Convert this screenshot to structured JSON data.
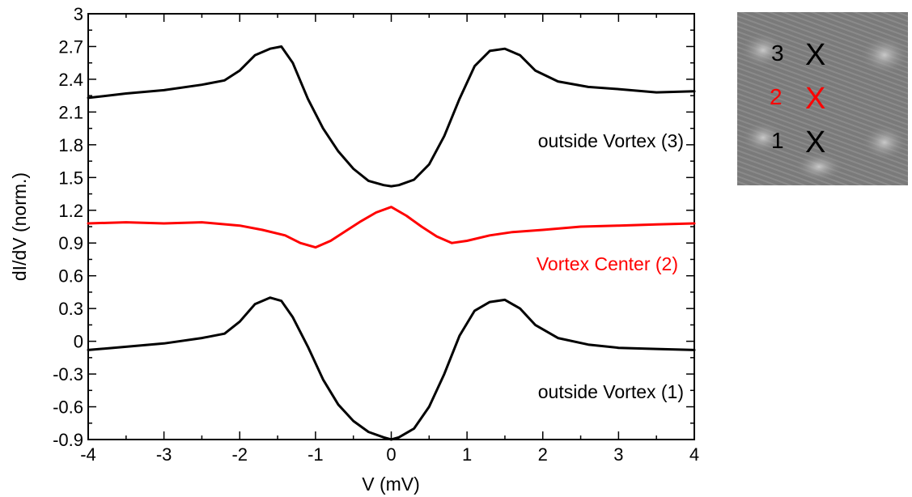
{
  "chart_data": {
    "type": "line",
    "title": "",
    "xlabel": "V (mV)",
    "ylabel": "dI/dV (norm.)",
    "xlim": [
      -4,
      4
    ],
    "ylim": [
      -0.9,
      3
    ],
    "xticks": [
      -4,
      -3,
      -2,
      -1,
      0,
      1,
      2,
      3,
      4
    ],
    "yticks": [
      -0.9,
      -0.6,
      -0.3,
      0,
      0.3,
      0.6,
      0.9,
      1.2,
      1.5,
      1.8,
      2.1,
      2.4,
      2.7,
      3
    ],
    "xtick_labels": [
      "-4",
      "-3",
      "-2",
      "-1",
      "0",
      "1",
      "2",
      "3",
      "4"
    ],
    "ytick_labels": [
      "-0.9",
      "-0.6",
      "-0.3",
      "0",
      "0.3",
      "0.6",
      "0.9",
      "1.2",
      "1.5",
      "1.8",
      "2.1",
      "2.4",
      "2.7",
      "3"
    ],
    "grid": false,
    "series": [
      {
        "color": "#000000",
        "x": [
          -4.0,
          -3.5,
          -3.0,
          -2.5,
          -2.2,
          -2.0,
          -1.8,
          -1.6,
          -1.45,
          -1.3,
          -1.1,
          -0.9,
          -0.7,
          -0.5,
          -0.3,
          -0.1,
          0.0,
          0.1,
          0.3,
          0.5,
          0.7,
          0.9,
          1.1,
          1.3,
          1.5,
          1.7,
          1.9,
          2.2,
          2.6,
          3.0,
          3.5,
          4.0
        ],
        "y": [
          2.23,
          2.27,
          2.3,
          2.35,
          2.39,
          2.48,
          2.62,
          2.68,
          2.7,
          2.55,
          2.22,
          1.95,
          1.74,
          1.58,
          1.47,
          1.43,
          1.42,
          1.43,
          1.48,
          1.62,
          1.88,
          2.22,
          2.52,
          2.66,
          2.68,
          2.62,
          2.48,
          2.38,
          2.33,
          2.31,
          2.28,
          2.29
        ]
      },
      {
        "color": "#ff0000",
        "x": [
          -4.0,
          -3.5,
          -3.0,
          -2.5,
          -2.0,
          -1.7,
          -1.4,
          -1.2,
          -1.0,
          -0.8,
          -0.6,
          -0.4,
          -0.2,
          0.0,
          0.2,
          0.4,
          0.6,
          0.8,
          1.0,
          1.3,
          1.6,
          2.0,
          2.5,
          3.0,
          3.5,
          4.0
        ],
        "y": [
          1.08,
          1.09,
          1.08,
          1.09,
          1.06,
          1.02,
          0.97,
          0.9,
          0.86,
          0.92,
          1.01,
          1.1,
          1.18,
          1.23,
          1.15,
          1.05,
          0.96,
          0.9,
          0.92,
          0.97,
          1.0,
          1.02,
          1.05,
          1.06,
          1.07,
          1.08
        ]
      },
      {
        "color": "#000000",
        "x": [
          -4.0,
          -3.5,
          -3.0,
          -2.5,
          -2.2,
          -2.0,
          -1.8,
          -1.6,
          -1.45,
          -1.3,
          -1.1,
          -0.9,
          -0.7,
          -0.5,
          -0.3,
          -0.1,
          0.0,
          0.1,
          0.3,
          0.5,
          0.7,
          0.9,
          1.1,
          1.3,
          1.5,
          1.7,
          1.9,
          2.2,
          2.6,
          3.0,
          3.5,
          4.0
        ],
        "y": [
          -0.08,
          -0.05,
          -0.02,
          0.03,
          0.07,
          0.18,
          0.34,
          0.4,
          0.37,
          0.22,
          -0.05,
          -0.35,
          -0.58,
          -0.73,
          -0.83,
          -0.88,
          -0.9,
          -0.88,
          -0.8,
          -0.6,
          -0.3,
          0.05,
          0.28,
          0.36,
          0.38,
          0.3,
          0.15,
          0.03,
          -0.03,
          -0.06,
          -0.07,
          -0.08
        ]
      }
    ],
    "annotations": [
      {
        "text": "outside Vortex (3)",
        "color": "#000000"
      },
      {
        "text": "Vortex Center (2)",
        "color": "#ff0000"
      },
      {
        "text": "outside Vortex (1)",
        "color": "#000000"
      }
    ]
  },
  "inset": {
    "markers": [
      {
        "number": "3",
        "symbol": "X",
        "color": "#000000"
      },
      {
        "number": "2",
        "symbol": "X",
        "color": "#ff0000"
      },
      {
        "number": "1",
        "symbol": "X",
        "color": "#000000"
      }
    ]
  }
}
